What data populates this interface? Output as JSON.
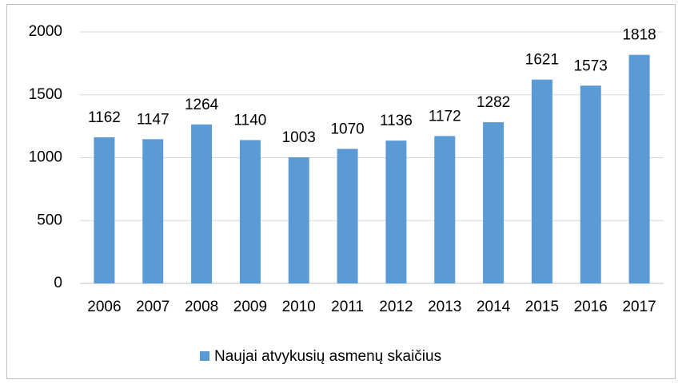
{
  "chart_data": {
    "type": "bar",
    "categories": [
      "2006",
      "2007",
      "2008",
      "2009",
      "2010",
      "2011",
      "2012",
      "2013",
      "2014",
      "2015",
      "2016",
      "2017"
    ],
    "series": [
      {
        "name": "Naujai atvykusių asmenų skaičius",
        "color": "#5b9bd5",
        "values": [
          1162,
          1147,
          1264,
          1140,
          1003,
          1070,
          1136,
          1172,
          1282,
          1621,
          1573,
          1818
        ]
      }
    ],
    "ylim": [
      0,
      2000
    ],
    "yticks": [
      0,
      500,
      1000,
      1500,
      2000
    ],
    "grid": true,
    "legend": "bottom"
  }
}
